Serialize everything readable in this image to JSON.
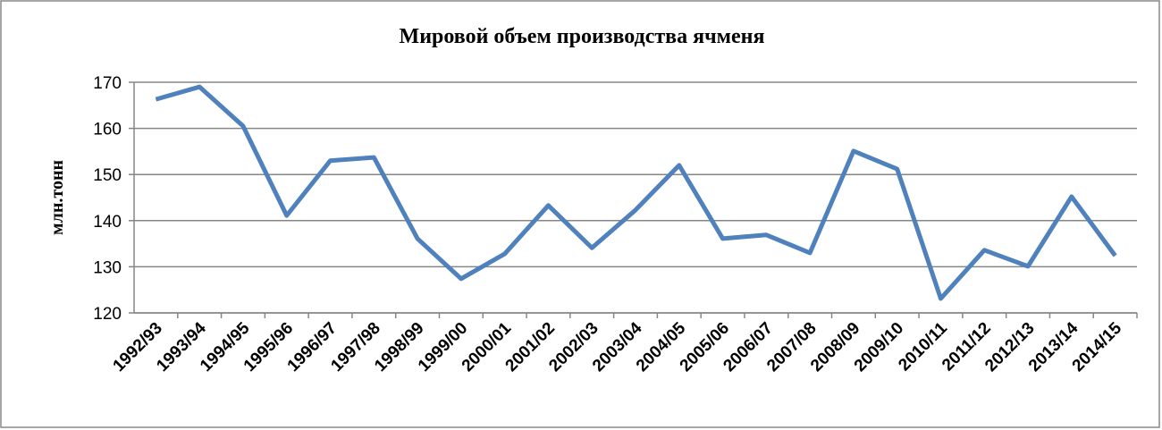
{
  "chart_data": {
    "type": "line",
    "title": "Мировой объем производства ячменя",
    "y_label": "млн.тонн",
    "categories": [
      "1992/93",
      "1993/94",
      "1994/95",
      "1995/96",
      "1996/97",
      "1997/98",
      "1998/99",
      "1999/00",
      "2000/01",
      "2001/02",
      "2002/03",
      "2003/04",
      "2004/05",
      "2005/06",
      "2006/07",
      "2007/08",
      "2008/09",
      "2009/10",
      "2010/11",
      "2011/12",
      "2012/13",
      "2013/14",
      "2014/15"
    ],
    "series": [
      {
        "name": "Мировой объем производства ячменя",
        "color": "#4f81bd",
        "values": [
          166.3,
          169,
          160.5,
          141.1,
          153,
          153.7,
          136.1,
          127.4,
          132.8,
          143.3,
          134.1,
          142.3,
          152,
          136.1,
          136.9,
          133,
          155.1,
          151.2,
          123.1,
          133.6,
          130.1,
          145.2,
          132.4
        ]
      }
    ],
    "ylim": [
      120,
      170
    ],
    "yticks": [
      120,
      130,
      140,
      150,
      160,
      170
    ],
    "grid": true
  }
}
